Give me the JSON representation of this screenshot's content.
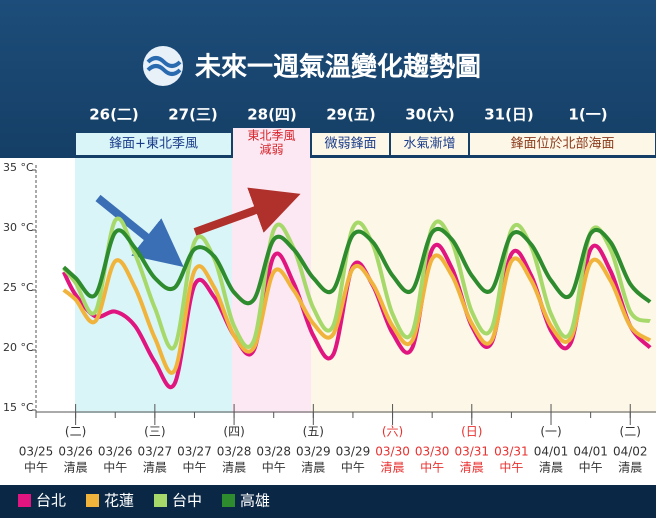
{
  "title": "未來一週氣溫變化趨勢圖",
  "days": [
    "26(二)",
    "27(三)",
    "28(四)",
    "29(五)",
    "30(六)",
    "31(日)",
    "1(一)"
  ],
  "notes": [
    "鋒面+東北季風",
    [
      "東北季風",
      "減弱"
    ],
    "微弱鋒面",
    "水氣漸增",
    "鋒面位於北部海面"
  ],
  "chart_data": {
    "type": "line",
    "x": [
      0.7,
      1,
      1.5,
      2,
      2.5,
      3,
      3.5,
      4,
      4.5,
      5,
      5.5,
      6,
      6.5,
      7,
      7.5,
      8,
      8.5,
      9,
      9.5,
      10,
      10.5,
      11,
      11.5,
      12,
      12.5,
      13,
      13.5,
      14,
      14.5,
      15,
      15.5
    ],
    "xlim": [
      0,
      15.65
    ],
    "xticks": [
      {
        "value": 0,
        "label": "03/25"
      },
      {
        "value": 1,
        "label": "03/26"
      },
      {
        "value": 2,
        "label": "03/26"
      },
      {
        "value": 3,
        "label": "03/27"
      },
      {
        "value": 4,
        "label": "03/27"
      },
      {
        "value": 5,
        "label": "03/28"
      },
      {
        "value": 6,
        "label": "03/28"
      },
      {
        "value": 7,
        "label": "03/29"
      },
      {
        "value": 8,
        "label": "03/29"
      },
      {
        "value": 9,
        "label": "03/30",
        "color": "#e8312f"
      },
      {
        "value": 10,
        "label": "03/30",
        "color": "#e8312f"
      },
      {
        "value": 11,
        "label": "03/31",
        "color": "#e8312f"
      },
      {
        "value": 12,
        "label": "03/31",
        "color": "#e8312f"
      },
      {
        "value": 13,
        "label": "04/01"
      },
      {
        "value": 14,
        "label": "04/01"
      },
      {
        "value": 15,
        "label": "04/02"
      }
    ],
    "xtick_periods": [
      "中午",
      "清晨",
      "中午",
      "清晨",
      "中午",
      "清晨",
      "中午",
      "清晨",
      "中午",
      "清晨",
      "中午",
      "清晨",
      "中午",
      "清晨",
      "中午",
      "清晨"
    ],
    "weekday_ticks": [
      {
        "value": 1,
        "label": "(二)"
      },
      {
        "value": 3,
        "label": "(三)"
      },
      {
        "value": 5,
        "label": "(四)"
      },
      {
        "value": 7,
        "label": "(五)"
      },
      {
        "value": 9,
        "label": "(六)",
        "color": "#e8312f"
      },
      {
        "value": 11,
        "label": "(日)",
        "color": "#e8312f"
      },
      {
        "value": 13,
        "label": "(一)"
      },
      {
        "value": 15,
        "label": "(二)"
      }
    ],
    "ylim": [
      15,
      35
    ],
    "yticks": [
      {
        "value": 15,
        "label": "15 °C"
      },
      {
        "value": 20,
        "label": "20 °C"
      },
      {
        "value": 25,
        "label": "25 °C"
      },
      {
        "value": 30,
        "label": "30 °C"
      },
      {
        "value": 35,
        "label": "35 °C"
      }
    ],
    "series": [
      {
        "name": "台北",
        "color": "#e0157f",
        "values": [
          26.5,
          24.6,
          22.8,
          23.2,
          22.0,
          19.0,
          17.2,
          25.4,
          24.4,
          21.2,
          20.0,
          27.8,
          25.6,
          21.2,
          19.6,
          27.0,
          25.4,
          21.4,
          20.2,
          28.4,
          26.8,
          22.0,
          20.6,
          28.0,
          26.2,
          21.6,
          20.6,
          28.4,
          26.6,
          22.0,
          20.2
        ]
      },
      {
        "name": "花蓮",
        "color": "#f0b43c",
        "values": [
          25.0,
          24.2,
          22.4,
          27.4,
          25.2,
          21.0,
          18.3,
          26.6,
          25.2,
          21.2,
          20.2,
          26.5,
          25.0,
          22.2,
          21.3,
          26.8,
          25.5,
          22.0,
          20.8,
          27.6,
          26.2,
          22.2,
          20.8,
          27.4,
          25.8,
          22.0,
          21.0,
          27.3,
          25.8,
          22.0,
          20.8
        ]
      },
      {
        "name": "台中",
        "color": "#a6d96a",
        "values": [
          26.8,
          25.6,
          23.2,
          30.8,
          28.0,
          23.5,
          20.3,
          29.0,
          27.6,
          22.0,
          20.8,
          30.0,
          28.5,
          23.5,
          22.0,
          30.2,
          28.8,
          23.0,
          21.5,
          30.2,
          29.0,
          23.2,
          21.8,
          30.0,
          28.6,
          23.0,
          21.5,
          29.8,
          28.4,
          23.2,
          22.4
        ]
      },
      {
        "name": "高雄",
        "color": "#2e8b2e",
        "values": [
          26.9,
          26.0,
          24.6,
          29.8,
          28.5,
          26.0,
          25.2,
          28.4,
          27.8,
          24.8,
          24.2,
          29.2,
          28.4,
          26.0,
          25.0,
          29.6,
          29.0,
          26.2,
          25.0,
          29.8,
          29.2,
          26.2,
          25.0,
          29.6,
          28.8,
          25.8,
          24.6,
          29.7,
          29.0,
          25.5,
          24.0
        ]
      }
    ]
  }
}
